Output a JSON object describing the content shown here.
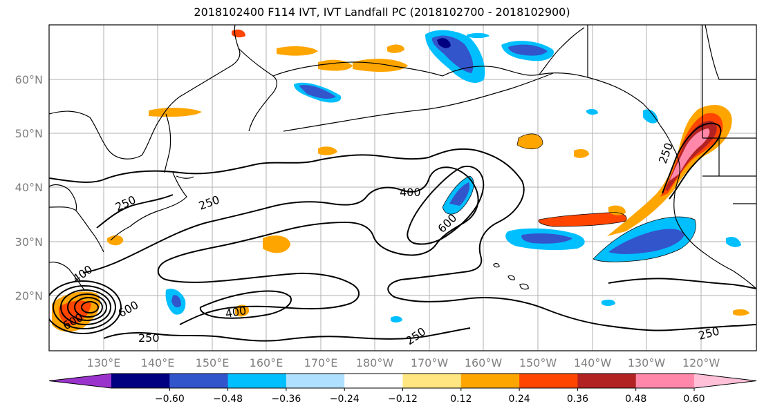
{
  "title": "2018102400 F114 IVT, IVT Landfall PC (2018102700 - 2018102900)",
  "lat_labels": [
    "60°N",
    "50°N",
    "40°N",
    "30°N",
    "20°N"
  ],
  "lon_labels": [
    "130°E",
    "140°E",
    "150°E",
    "160°E",
    "170°E",
    "180°W",
    "170°W",
    "160°W",
    "150°W",
    "140°W",
    "130°W",
    "120°W"
  ],
  "colorbar": {
    "ticks": [
      "−0.60",
      "−0.48",
      "−0.36",
      "−0.24",
      "−0.12",
      "0.12",
      "0.24",
      "0.36",
      "0.48",
      "0.60"
    ],
    "colors": [
      "#9933cc",
      "#000080",
      "#3355cc",
      "#00bfff",
      "#b0e0ff",
      "#ffffff",
      "#ffe680",
      "#ffa500",
      "#ff4500",
      "#b22222",
      "#ff88aa",
      "#ffc0d8"
    ]
  },
  "contour_labels": {
    "250_a": "250",
    "250_b": "250",
    "250_c": "250",
    "250_d": "250",
    "250_e": "250",
    "250_f": "250",
    "400_a": "400",
    "400_b": "400",
    "400_c": "400",
    "600_a": "600",
    "600_b": "600",
    "600_c": "600"
  },
  "legend_colors": {
    "positive_strong": "#b22222",
    "positive_mid": "#ff4500",
    "positive_low": "#ffa500",
    "positive_faint": "#ffe680",
    "negative_faint": "#b0e0ff",
    "negative_low": "#00bfff",
    "negative_mid": "#3355cc",
    "negative_strong": "#000080"
  }
}
